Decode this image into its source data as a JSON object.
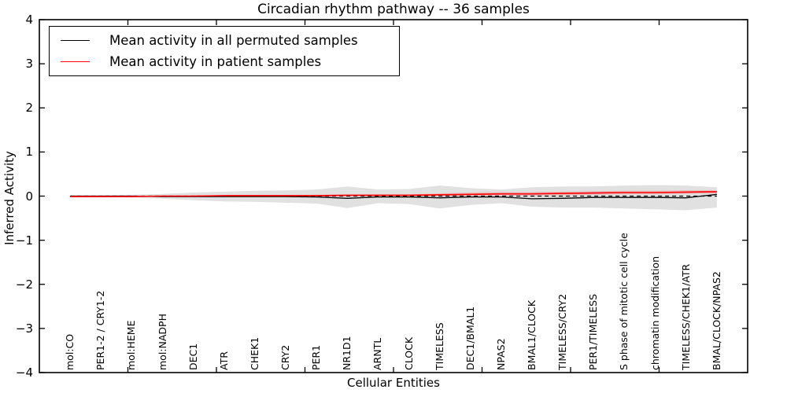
{
  "title": "Circadian rhythm pathway -- 36 samples",
  "legend": {
    "items": [
      {
        "label": "Mean activity in all permuted samples",
        "color": "#000000"
      },
      {
        "label": "Mean activity in patient samples",
        "color": "#ff0000"
      }
    ]
  },
  "chart_data": {
    "type": "line",
    "title": "Circadian rhythm pathway -- 36 samples",
    "xlabel": "Cellular Entities",
    "ylabel": "Inferred Activity",
    "ylim": [
      -4,
      4
    ],
    "yticks": [
      -4,
      -3,
      -2,
      -1,
      0,
      1,
      2,
      3,
      4
    ],
    "grid": false,
    "legend_position": "upper left",
    "categories": [
      "mol:CO",
      "PER1-2 / CRY1-2",
      "mol:HEME",
      "mol:NADPH",
      "DEC1",
      "ATR",
      "CHEK1",
      "CRY2",
      "PER1",
      "NR1D1",
      "ARNTL",
      "CLOCK",
      "TIMELESS",
      "DEC1/BMAL1",
      "NPAS2",
      "BMAL1/CLOCK",
      "TIMELESS/CRY2",
      "PER1/TIMELESS",
      "S phase of mitotic cell cycle",
      "chromatin modification",
      "TIMELESS/CHEK1/ATR",
      "BMAL/CLOCK/NPAS2"
    ],
    "series": [
      {
        "name": "Mean activity in all permuted samples",
        "color": "#000000",
        "style": "solid",
        "values": [
          0.0,
          0.0,
          0.0,
          -0.01,
          -0.01,
          -0.01,
          -0.01,
          -0.01,
          -0.02,
          -0.05,
          -0.02,
          -0.02,
          -0.04,
          -0.02,
          -0.02,
          -0.06,
          -0.05,
          -0.03,
          -0.03,
          -0.03,
          -0.04,
          0.04
        ]
      },
      {
        "name": "Mean activity in patient samples",
        "color": "#ff0000",
        "style": "solid",
        "values": [
          -0.01,
          -0.01,
          -0.01,
          0.0,
          0.0,
          0.01,
          0.01,
          0.01,
          0.01,
          0.02,
          0.02,
          0.02,
          0.03,
          0.04,
          0.05,
          0.05,
          0.06,
          0.07,
          0.08,
          0.08,
          0.09,
          0.1
        ]
      }
    ],
    "zero_line": {
      "y": 0,
      "style": "dashed",
      "color": "#000000"
    },
    "permuted_band": {
      "color": "#e1e1e1",
      "upper": [
        0.02,
        0.02,
        0.03,
        0.05,
        0.08,
        0.1,
        0.12,
        0.13,
        0.15,
        0.22,
        0.15,
        0.16,
        0.24,
        0.18,
        0.15,
        0.2,
        0.22,
        0.22,
        0.24,
        0.25,
        0.24,
        0.2
      ],
      "lower": [
        -0.02,
        -0.02,
        -0.03,
        -0.06,
        -0.09,
        -0.12,
        -0.13,
        -0.15,
        -0.17,
        -0.27,
        -0.16,
        -0.18,
        -0.28,
        -0.2,
        -0.16,
        -0.24,
        -0.26,
        -0.26,
        -0.28,
        -0.3,
        -0.32,
        -0.26
      ]
    },
    "patient_band": {
      "color": "rgba(255,0,0,0.18)",
      "upper": [
        0.0,
        0.0,
        0.0,
        0.01,
        0.01,
        0.02,
        0.02,
        0.02,
        0.03,
        0.04,
        0.04,
        0.04,
        0.06,
        0.08,
        0.09,
        0.09,
        0.1,
        0.11,
        0.12,
        0.12,
        0.13,
        0.13
      ],
      "lower": [
        -0.02,
        -0.02,
        -0.02,
        -0.01,
        -0.01,
        0.0,
        0.0,
        0.0,
        -0.01,
        0.0,
        0.0,
        0.0,
        0.0,
        0.0,
        0.01,
        0.01,
        0.02,
        0.03,
        0.04,
        0.04,
        0.05,
        0.06
      ]
    },
    "colors": {
      "axis": "#000000",
      "background": "#ffffff"
    }
  }
}
